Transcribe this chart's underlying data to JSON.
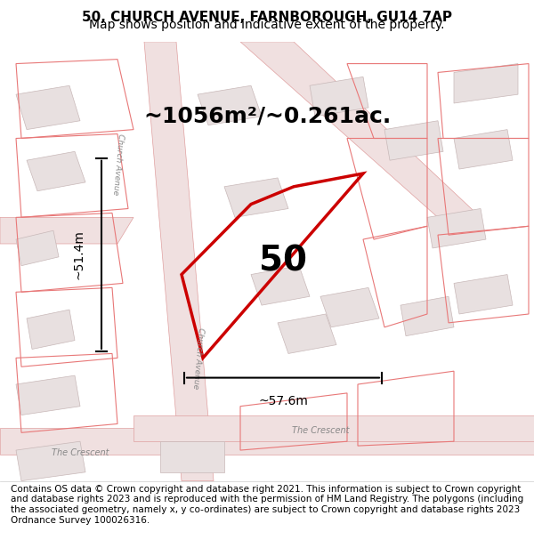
{
  "title": "50, CHURCH AVENUE, FARNBOROUGH, GU14 7AP",
  "subtitle": "Map shows position and indicative extent of the property.",
  "area_text": "~1056m²/~0.261ac.",
  "number_label": "50",
  "dim_width": "~57.6m",
  "dim_height": "~51.4m",
  "footer": "Contains OS data © Crown copyright and database right 2021. This information is subject to Crown copyright and database rights 2023 and is reproduced with the permission of HM Land Registry. The polygons (including the associated geometry, namely x, y co-ordinates) are subject to Crown copyright and database rights 2023 Ordnance Survey 100026316.",
  "bg_color": "#f5f0f0",
  "map_bg": "#f5f0ee",
  "road_color": "#f5c8c8",
  "road_stroke": "#e8a0a0",
  "building_color": "#e8e0e0",
  "plot_color": "#cc0000",
  "plot_fill": "none",
  "title_fontsize": 11,
  "subtitle_fontsize": 10,
  "area_fontsize": 18,
  "number_fontsize": 28,
  "dim_fontsize": 10,
  "footer_fontsize": 7.5,
  "figsize": [
    6.0,
    6.25
  ],
  "dpi": 100
}
